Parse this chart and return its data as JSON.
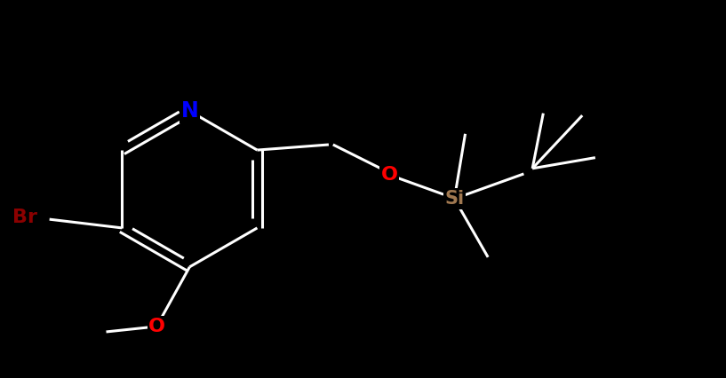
{
  "bg_color": "#000000",
  "atom_colors": {
    "N": "#0000ff",
    "O": "#ff0000",
    "Br": "#8b0000",
    "Si": "#a07850",
    "C": "#ffffff"
  },
  "bond_color": "#ffffff",
  "bond_width": 2.2,
  "figsize": [
    8.17,
    4.26
  ],
  "dpi": 100,
  "font_size": 15
}
